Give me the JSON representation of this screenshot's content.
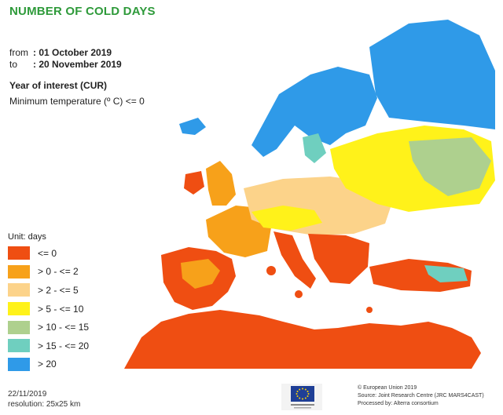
{
  "title": "NUMBER OF COLD DAYS",
  "period": {
    "from_label": "from",
    "from_value": ": 01 October 2019",
    "to_label": "to",
    "to_value": ": 20 November 2019"
  },
  "year_of_interest": "Year of interest (CUR)",
  "criterion": "Minimum temperature (º C) <= 0",
  "legend": {
    "unit": "Unit:  days",
    "items": [
      {
        "label": "<= 0",
        "color": "#ef4e12"
      },
      {
        "label": "> 0 - <= 2",
        "color": "#f7a11a"
      },
      {
        "label": "> 2 - <= 5",
        "color": "#fcd38a"
      },
      {
        "label": "> 5 - <= 10",
        "color": "#fff21a"
      },
      {
        "label": "> 10 - <= 15",
        "color": "#aed08e"
      },
      {
        "label": "> 15 - <= 20",
        "color": "#6fcfbf"
      },
      {
        "label": "> 20",
        "color": "#2f9ae8"
      }
    ]
  },
  "footer": {
    "date": "22/11/2019",
    "resolution": "resolution:  25x25 km",
    "credit_lines": [
      "© European Union 2019",
      "Source: Joint Research Centre (JRC MARS4CAST)",
      "Processed by: Alterra consortium"
    ]
  },
  "colors": {
    "title": "#2e9a3a",
    "sea": "#ffffff"
  }
}
